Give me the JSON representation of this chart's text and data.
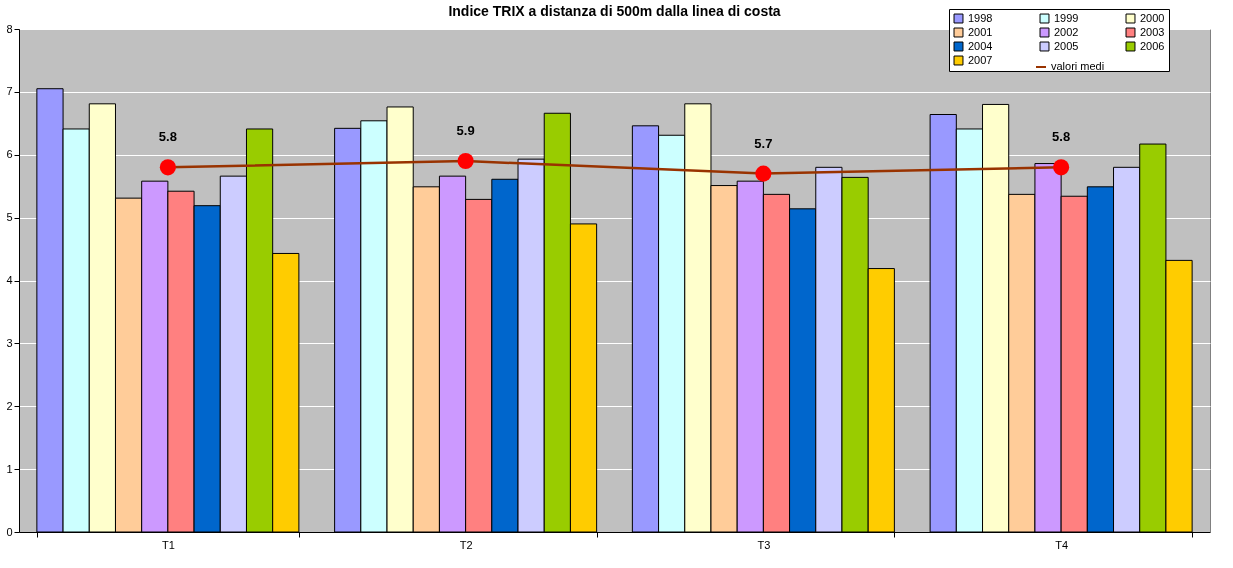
{
  "chart_data": {
    "type": "bar",
    "title": "Indice TRIX a distanza di 500m dalla linea di costa",
    "categories": [
      "T1",
      "T2",
      "T3",
      "T4"
    ],
    "series": [
      {
        "name": "1998",
        "color": "#9999ff",
        "values": [
          7.05,
          6.42,
          6.46,
          6.64
        ]
      },
      {
        "name": "1999",
        "color": "#ccffff",
        "values": [
          6.41,
          6.54,
          6.31,
          6.41
        ]
      },
      {
        "name": "2000",
        "color": "#ffffcc",
        "values": [
          6.81,
          6.76,
          6.81,
          6.8
        ]
      },
      {
        "name": "2001",
        "color": "#ffcc99",
        "values": [
          5.31,
          5.49,
          5.51,
          5.37
        ]
      },
      {
        "name": "2002",
        "color": "#cc99ff",
        "values": [
          5.58,
          5.66,
          5.58,
          5.86
        ]
      },
      {
        "name": "2003",
        "color": "#ff8080",
        "values": [
          5.42,
          5.29,
          5.37,
          5.34
        ]
      },
      {
        "name": "2004",
        "color": "#0066cc",
        "values": [
          5.19,
          5.61,
          5.14,
          5.49
        ]
      },
      {
        "name": "2005",
        "color": "#ccccff",
        "values": [
          5.66,
          5.93,
          5.8,
          5.8
        ]
      },
      {
        "name": "2006",
        "color": "#99cc00",
        "values": [
          6.41,
          6.66,
          5.64,
          6.17
        ]
      },
      {
        "name": "2007",
        "color": "#ffcc00",
        "values": [
          4.43,
          4.9,
          4.19,
          4.32
        ]
      },
      {
        "name": "valori medi",
        "type": "line",
        "color": "#993300",
        "colors": [
          "#ff0000",
          "#ff0000",
          "#ff0000",
          "#ff0000"
        ],
        "marker": "circle",
        "data_labels": true,
        "values": [
          5.8,
          5.9,
          5.7,
          5.8
        ]
      }
    ],
    "ylim": [
      0,
      8
    ],
    "yticks": [
      0,
      1,
      2,
      3,
      4,
      5,
      6,
      7,
      8
    ],
    "grid": "y",
    "legend": "top right"
  }
}
